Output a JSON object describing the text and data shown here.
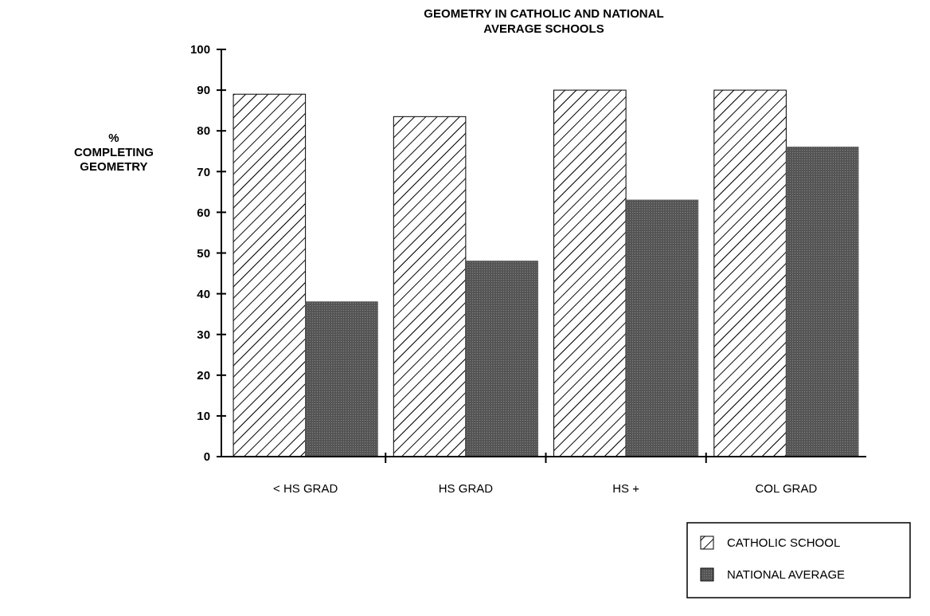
{
  "chart_data": {
    "type": "bar",
    "title": "GEOMETRY IN CATHOLIC AND NATIONAL\nAVERAGE SCHOOLS",
    "ylabel": "%\nCOMPLETING\nGEOMETRY",
    "categories": [
      "< HS GRAD",
      "HS GRAD",
      "HS +",
      "COL GRAD"
    ],
    "series": [
      {
        "name": "CATHOLIC SCHOOL",
        "color": "#000000",
        "values": [
          89,
          83.5,
          90,
          90
        ]
      },
      {
        "name": "NATIONAL AVERAGE",
        "color": "#555555",
        "values": [
          38,
          48,
          63,
          76
        ]
      }
    ],
    "ylim": [
      0,
      100
    ],
    "yticks": [
      0,
      10,
      20,
      30,
      40,
      50,
      60,
      70,
      80,
      90,
      100
    ],
    "grid": false,
    "legend": "bottom right"
  }
}
